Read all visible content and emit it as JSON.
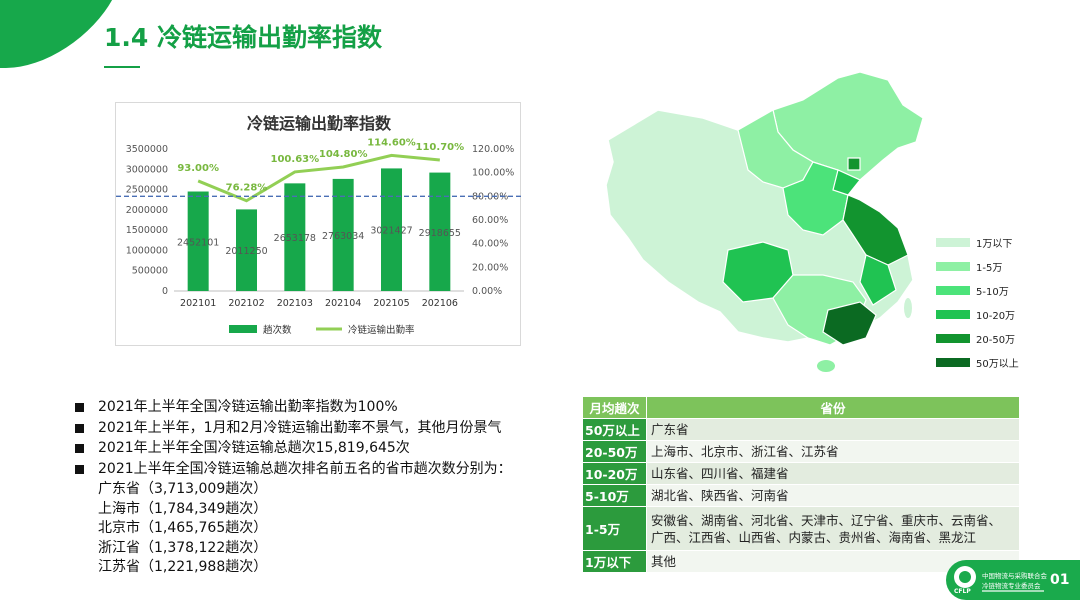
{
  "slide": {
    "title": "1.4 冷链运输出勤率指数"
  },
  "chart_data": {
    "type": "bar",
    "title": "冷链运输出勤率指数",
    "categories": [
      "202101",
      "202102",
      "202103",
      "202104",
      "202105",
      "202106"
    ],
    "series": [
      {
        "name": "趟次数",
        "type": "bar",
        "color": "#17a84b",
        "values": [
          2452101,
          2011250,
          2653178,
          2763034,
          3021427,
          2918655
        ],
        "labels": [
          "2452101",
          "2011250",
          "2653178",
          "2763034",
          "3021427",
          "2918655"
        ]
      },
      {
        "name": "冷链运输出勤率",
        "type": "line",
        "color": "#92cf55",
        "values": [
          93.0,
          76.28,
          100.63,
          104.8,
          114.6,
          110.7
        ],
        "labels": [
          "93.00%",
          "76.28%",
          "100.63%",
          "104.80%",
          "114.60%",
          "110.70%"
        ]
      }
    ],
    "y_left": {
      "min": 0,
      "max": 3500000,
      "ticks": [
        "0",
        "500000",
        "1000000",
        "1500000",
        "2000000",
        "2500000",
        "3000000",
        "3500000"
      ]
    },
    "y_right": {
      "min": 0,
      "max": 120,
      "ticks": [
        "0.00%",
        "20.00%",
        "40.00%",
        "60.00%",
        "80.00%",
        "100.00%",
        "120.00%"
      ]
    },
    "reference_line": {
      "right_axis_value": 80,
      "style": "dashed",
      "color": "#4a6fb5"
    },
    "legend_position": "bottom",
    "grid": true
  },
  "bullets": [
    "2021年上半年全国冷链运输出勤率指数为100%",
    "2021年上半年，1月和2月冷链运输出勤率不景气，其他月份景气",
    "2021年上半年全国冷链运输总趟次15,819,645次",
    "2021上半年全国冷链运输总趟次排名前五名的省市趟次数分别为："
  ],
  "top_provinces": [
    "广东省（3,713,009趟次）",
    "上海市（1,784,349趟次）",
    "北京市（1,465,765趟次）",
    "浙江省（1,378,122趟次）",
    "江苏省（1,221,988趟次）"
  ],
  "map_legend": [
    {
      "label": "1万以下",
      "color": "#cdf3d6"
    },
    {
      "label": "1-5万",
      "color": "#8ef0a4"
    },
    {
      "label": "5-10万",
      "color": "#4ce37a"
    },
    {
      "label": "10-20万",
      "color": "#20c352"
    },
    {
      "label": "20-50万",
      "color": "#12942f"
    },
    {
      "label": "50万以上",
      "color": "#0b6a22"
    }
  ],
  "table": {
    "headers": [
      "月均趟次",
      "省份"
    ],
    "rows": [
      {
        "key": "50万以上",
        "value": "广东省"
      },
      {
        "key": "20-50万",
        "value": "上海市、北京市、浙江省、江苏省"
      },
      {
        "key": "10-20万",
        "value": "山东省、四川省、福建省"
      },
      {
        "key": "5-10万",
        "value": "湖北省、陕西省、河南省"
      },
      {
        "key": "1-5万",
        "value": "安徽省、湖南省、河北省、天津市、辽宁省、重庆市、云南省、",
        "value2": "广西、江西省、山西省、内蒙古、贵州省、海南省、黑龙江"
      },
      {
        "key": "1万以下",
        "value": "其他"
      }
    ]
  },
  "logo": {
    "line1": "中国物流与采购联合会",
    "line2": "冷链物流专业委员会",
    "abbr": "CFLP",
    "page": "01"
  }
}
